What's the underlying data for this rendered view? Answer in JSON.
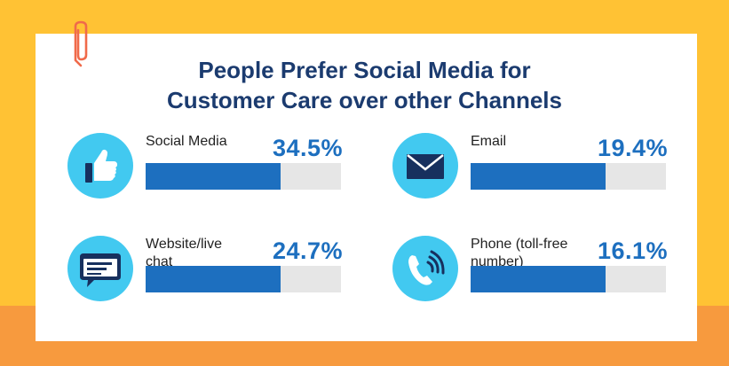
{
  "title_lines": [
    "People Prefer Social Media for",
    "Customer Care over other Channels"
  ],
  "colors": {
    "frame_yellow": "#FFC234",
    "frame_orange": "#F79A3E",
    "title": "#1B3B6F",
    "bar_fill": "#1D6FBF",
    "bar_track": "#E6E6E6",
    "icon_circle": "#42C9F0",
    "icon_dark": "#17305E",
    "clip": "#F06A4A"
  },
  "chart_data": {
    "type": "bar",
    "title": "People Prefer Social Media for Customer Care over other Channels",
    "categories": [
      "Social Media",
      "Website/live chat",
      "Email",
      "Phone (toll-free number)"
    ],
    "values": [
      34.5,
      24.7,
      19.4,
      16.1
    ],
    "value_labels": [
      "34.5%",
      "24.7%",
      "19.4%",
      "16.1%"
    ],
    "bar_fill_fraction": [
      0.69,
      0.69,
      0.69,
      0.69
    ],
    "icons": [
      "thumbs-up-icon",
      "chat-bubble-icon",
      "envelope-icon",
      "phone-icon"
    ],
    "unit": "%"
  }
}
